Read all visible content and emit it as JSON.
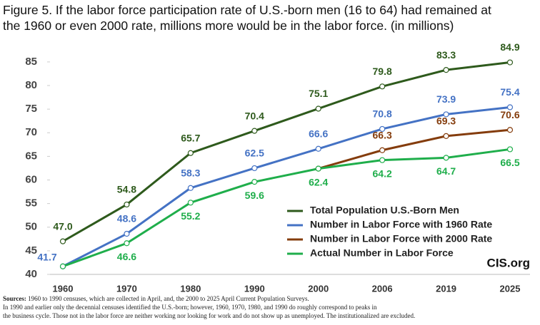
{
  "chart_data": {
    "type": "line",
    "title": [
      "Figure 5. If the labor force participation rate of U.S.-born men (16 to 64) had remained at",
      "the 1960 or even 2000 rate, millions more would be in the labor force. (in millions)"
    ],
    "categories": [
      "1960",
      "1970",
      "1980",
      "1990",
      "2000",
      "2006",
      "2019",
      "2025"
    ],
    "series": [
      {
        "name": "Total Population U.S.-Born Men",
        "color": "#2e5a1c",
        "values": [
          47.0,
          54.8,
          65.7,
          70.4,
          75.1,
          79.8,
          83.3,
          84.9
        ],
        "value_labels": [
          "47.0",
          "54.8",
          "65.7",
          "70.4",
          "75.1",
          "79.8",
          "83.3",
          "84.9"
        ]
      },
      {
        "name": "Number in Labor Force with 1960 Rate",
        "color": "#4472c4",
        "values": [
          41.7,
          48.6,
          58.3,
          62.5,
          66.6,
          70.8,
          73.9,
          75.4
        ],
        "value_labels": [
          "41.7",
          "48.6",
          "58.3",
          "62.5",
          "66.6",
          "70.8",
          "73.9",
          "75.4"
        ]
      },
      {
        "name": "Number in Labor Force with 2000 Rate",
        "color": "#843c0c",
        "values": [
          null,
          null,
          null,
          null,
          62.4,
          66.3,
          69.3,
          70.6
        ],
        "value_labels": [
          null,
          null,
          null,
          null,
          null,
          "66.3",
          "69.3",
          "70.6"
        ]
      },
      {
        "name": "Actual Number in Labor Force",
        "color": "#1fae4b",
        "values": [
          41.7,
          46.6,
          55.2,
          59.6,
          62.4,
          64.2,
          64.7,
          66.5
        ],
        "value_labels": [
          null,
          "46.6",
          "55.2",
          "59.6",
          "62.4",
          "64.2",
          "64.7",
          "66.5"
        ]
      }
    ],
    "ylim": [
      40,
      88
    ],
    "yticks": [
      40,
      45,
      50,
      55,
      60,
      65,
      70,
      75,
      80,
      85
    ],
    "grid": false,
    "legend": "lower right",
    "watermark": "CIS.org",
    "source": {
      "label": "Sources:",
      "text": "1960 to 1990 censuses, which are collected in April, and, the 2000 to 2025 April Current Population Surveys."
    },
    "notes": [
      "In 1990 and earlier only the decennial censuses identified the U.S.-born; however, 1960, 1970, 1980, and 1990 do roughly correspond to peaks in",
      "the business cycle. Those not in the labor force are neither working nor looking for work and do not show up as unemployed. The institutionalized are excluded."
    ]
  }
}
